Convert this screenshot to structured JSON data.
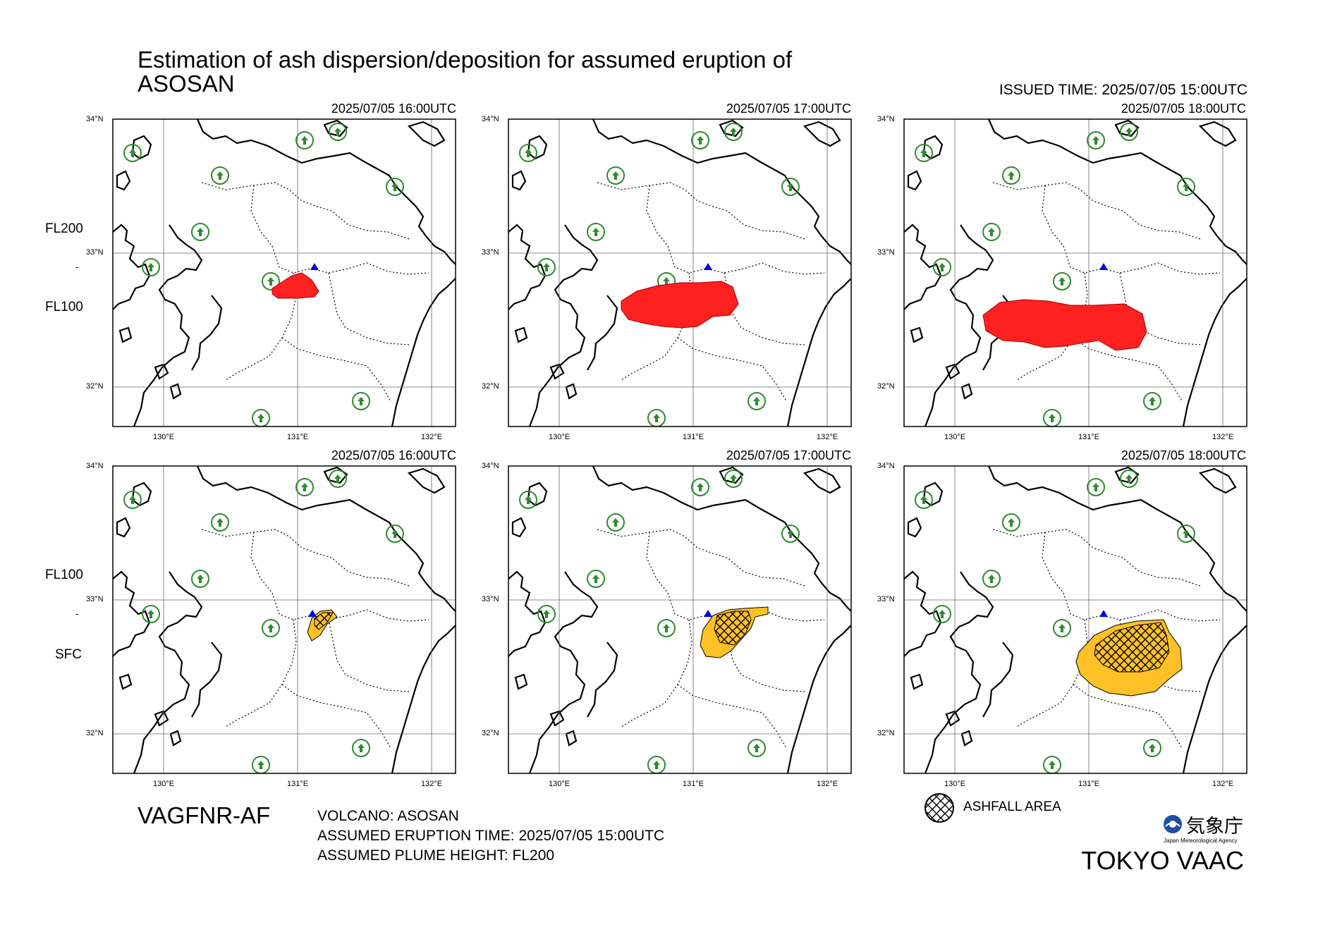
{
  "title": "Estimation of ash dispersion/deposition for assumed eruption of\nASOSAN",
  "title_line1": "Estimation of ash dispersion/deposition for assumed eruption of",
  "title_line2": "ASOSAN",
  "issued_time": "ISSUED TIME: 2025/07/05 15:00UTC",
  "rows": [
    {
      "top_label": "FL200",
      "dash": "-",
      "bottom_label": "FL100"
    },
    {
      "top_label": "FL100",
      "dash": "-",
      "bottom_label": "SFC"
    }
  ],
  "times": [
    "2025/07/05 16:00UTC",
    "2025/07/05 17:00UTC",
    "2025/07/05 18:00UTC"
  ],
  "lat_ticks": [
    "34°N",
    "33°N",
    "32°N"
  ],
  "lon_ticks": [
    "130°E",
    "131°E",
    "132°E"
  ],
  "product_code": "VAGFNR-AF",
  "volcano": "VOLCANO: ASOSAN",
  "eruption_time": "ASSUMED ERUPTION TIME: 2025/07/05 15:00UTC",
  "plume_height": "ASSUMED PLUME HEIGHT: FL200",
  "legend_ashfall": "ASHFALL AREA",
  "jma_kanji": "気象庁",
  "jma_en": "Japan Meteorological Agency",
  "vaac": "TOKYO VAAC",
  "colors": {
    "upper_ash": "#ff2020",
    "lower_ash": "#ffc125",
    "volcano": "#0000ee",
    "airport": "#2e8b2e"
  },
  "icons": {
    "volcano": "triangle-icon",
    "airport": "airport-icon",
    "ashfall": "hatch-icon",
    "logo": "jma-logo-icon"
  }
}
